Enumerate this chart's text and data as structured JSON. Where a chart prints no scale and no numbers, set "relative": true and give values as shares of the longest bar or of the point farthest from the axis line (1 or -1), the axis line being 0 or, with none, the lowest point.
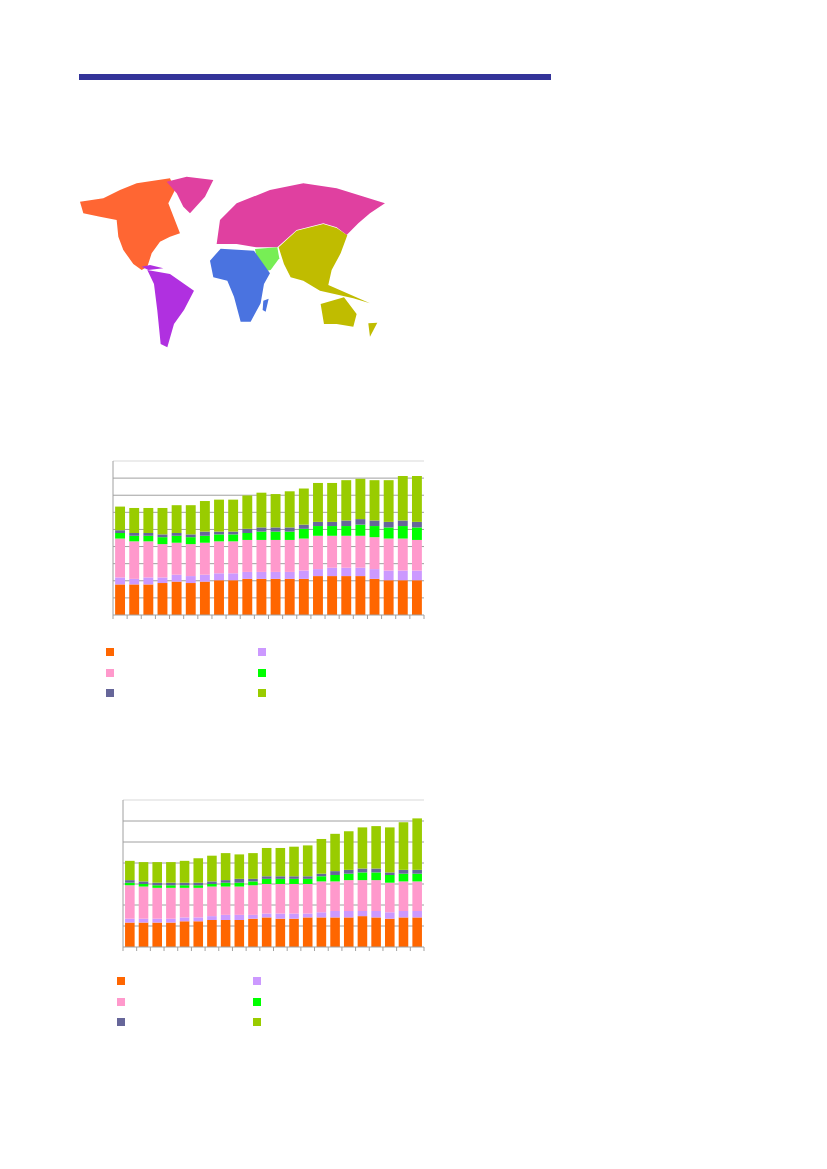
{
  "chart_data": [
    {
      "type": "bar",
      "stacked": true,
      "relative": true,
      "grid": "y",
      "categories": [
        null,
        null,
        null,
        null,
        null,
        null,
        null,
        null,
        null,
        null,
        null,
        null,
        null,
        null,
        null,
        null,
        null,
        null,
        null,
        null,
        null,
        null
      ],
      "series": [
        {
          "color": "#ff6600",
          "values": [
            0.22,
            0.22,
            0.22,
            0.23,
            0.24,
            0.23,
            0.24,
            0.25,
            0.25,
            0.26,
            0.26,
            0.26,
            0.26,
            0.26,
            0.28,
            0.28,
            0.28,
            0.28,
            0.26,
            0.25,
            0.25,
            0.25
          ]
        },
        {
          "color": "#cc99ff",
          "values": [
            0.05,
            0.04,
            0.05,
            0.04,
            0.05,
            0.05,
            0.05,
            0.05,
            0.05,
            0.05,
            0.05,
            0.05,
            0.05,
            0.06,
            0.05,
            0.06,
            0.06,
            0.06,
            0.07,
            0.07,
            0.07,
            0.07
          ]
        },
        {
          "color": "#ff99cc",
          "values": [
            0.28,
            0.27,
            0.26,
            0.24,
            0.23,
            0.23,
            0.23,
            0.23,
            0.23,
            0.23,
            0.23,
            0.23,
            0.23,
            0.23,
            0.24,
            0.23,
            0.23,
            0.23,
            0.23,
            0.23,
            0.23,
            0.22
          ]
        },
        {
          "color": "#00ff00",
          "values": [
            0.04,
            0.04,
            0.04,
            0.05,
            0.05,
            0.05,
            0.05,
            0.05,
            0.05,
            0.05,
            0.06,
            0.06,
            0.06,
            0.07,
            0.07,
            0.07,
            0.07,
            0.08,
            0.08,
            0.08,
            0.09,
            0.09
          ]
        },
        {
          "color": "#666699",
          "values": [
            0.02,
            0.02,
            0.02,
            0.02,
            0.02,
            0.02,
            0.03,
            0.02,
            0.02,
            0.03,
            0.03,
            0.03,
            0.03,
            0.03,
            0.03,
            0.03,
            0.04,
            0.04,
            0.04,
            0.04,
            0.04,
            0.04
          ]
        },
        {
          "color": "#99cc00",
          "values": [
            0.17,
            0.18,
            0.18,
            0.19,
            0.2,
            0.21,
            0.22,
            0.23,
            0.23,
            0.24,
            0.25,
            0.24,
            0.26,
            0.26,
            0.28,
            0.28,
            0.29,
            0.29,
            0.29,
            0.3,
            0.32,
            0.33
          ]
        }
      ]
    },
    {
      "type": "bar",
      "stacked": true,
      "relative": true,
      "grid": "y",
      "categories": [
        null,
        null,
        null,
        null,
        null,
        null,
        null,
        null,
        null,
        null,
        null,
        null,
        null,
        null,
        null,
        null,
        null,
        null,
        null,
        null,
        null,
        null
      ],
      "series": [
        {
          "color": "#ff6600",
          "values": [
            0.19,
            0.19,
            0.19,
            0.19,
            0.2,
            0.2,
            0.21,
            0.21,
            0.21,
            0.22,
            0.23,
            0.22,
            0.22,
            0.23,
            0.23,
            0.23,
            0.23,
            0.24,
            0.23,
            0.22,
            0.23,
            0.23
          ]
        },
        {
          "color": "#cc99ff",
          "values": [
            0.03,
            0.03,
            0.03,
            0.03,
            0.03,
            0.03,
            0.03,
            0.04,
            0.04,
            0.03,
            0.03,
            0.04,
            0.04,
            0.03,
            0.04,
            0.05,
            0.05,
            0.04,
            0.05,
            0.05,
            0.05,
            0.05
          ]
        },
        {
          "color": "#ff99cc",
          "values": [
            0.26,
            0.25,
            0.24,
            0.24,
            0.23,
            0.23,
            0.23,
            0.22,
            0.22,
            0.23,
            0.23,
            0.23,
            0.23,
            0.23,
            0.24,
            0.23,
            0.24,
            0.24,
            0.24,
            0.23,
            0.23,
            0.23
          ]
        },
        {
          "color": "#00ff00",
          "values": [
            0.02,
            0.02,
            0.02,
            0.02,
            0.02,
            0.02,
            0.02,
            0.03,
            0.03,
            0.03,
            0.04,
            0.04,
            0.04,
            0.04,
            0.04,
            0.05,
            0.05,
            0.06,
            0.06,
            0.06,
            0.06,
            0.06
          ]
        },
        {
          "color": "#666699",
          "values": [
            0.02,
            0.02,
            0.02,
            0.02,
            0.02,
            0.02,
            0.02,
            0.02,
            0.03,
            0.02,
            0.02,
            0.02,
            0.02,
            0.02,
            0.02,
            0.03,
            0.03,
            0.03,
            0.03,
            0.02,
            0.03,
            0.03
          ]
        },
        {
          "color": "#99cc00",
          "values": [
            0.15,
            0.15,
            0.16,
            0.16,
            0.17,
            0.19,
            0.2,
            0.21,
            0.19,
            0.2,
            0.22,
            0.22,
            0.23,
            0.24,
            0.27,
            0.29,
            0.3,
            0.32,
            0.33,
            0.35,
            0.37,
            0.4
          ]
        }
      ]
    }
  ]
}
